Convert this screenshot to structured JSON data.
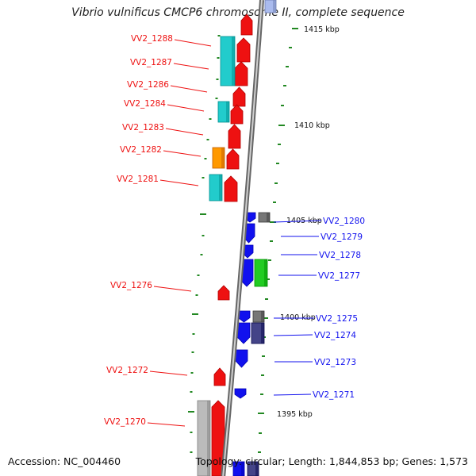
{
  "title": "Vibrio vulnificus CMCP6 chromosome II, complete sequence",
  "footer": {
    "accession": "Accession: NC_004460",
    "summary": "Topology: circular; Length: 1,844,853 bp; Genes: 1,573"
  },
  "colors": {
    "forward": "#ee1111",
    "reverse": "#1111ee",
    "cyan": "#22cccc",
    "orange": "#ff9900",
    "green": "#22cc22",
    "gray": "#777777",
    "navy": "#444488",
    "lightgray": "#bbbbbb",
    "scale": "#228822"
  },
  "scale_labels": [
    "1415 kbp",
    "1410 kbp",
    "1405 kbp",
    "1400 kbp",
    "1395 kbp"
  ],
  "gene_labels": {
    "left": [
      "VV2_1288",
      "VV2_1287",
      "VV2_1286",
      "VV2_1284",
      "VV2_1283",
      "VV2_1282",
      "VV2_1281",
      "VV2_1276",
      "VV2_1272",
      "VV2_1270"
    ],
    "right": [
      "VV2_1280",
      "VV2_1279",
      "VV2_1278",
      "VV2_1277",
      "VV2_1275",
      "VV2_1274",
      "VV2_1273",
      "VV2_1271"
    ]
  }
}
